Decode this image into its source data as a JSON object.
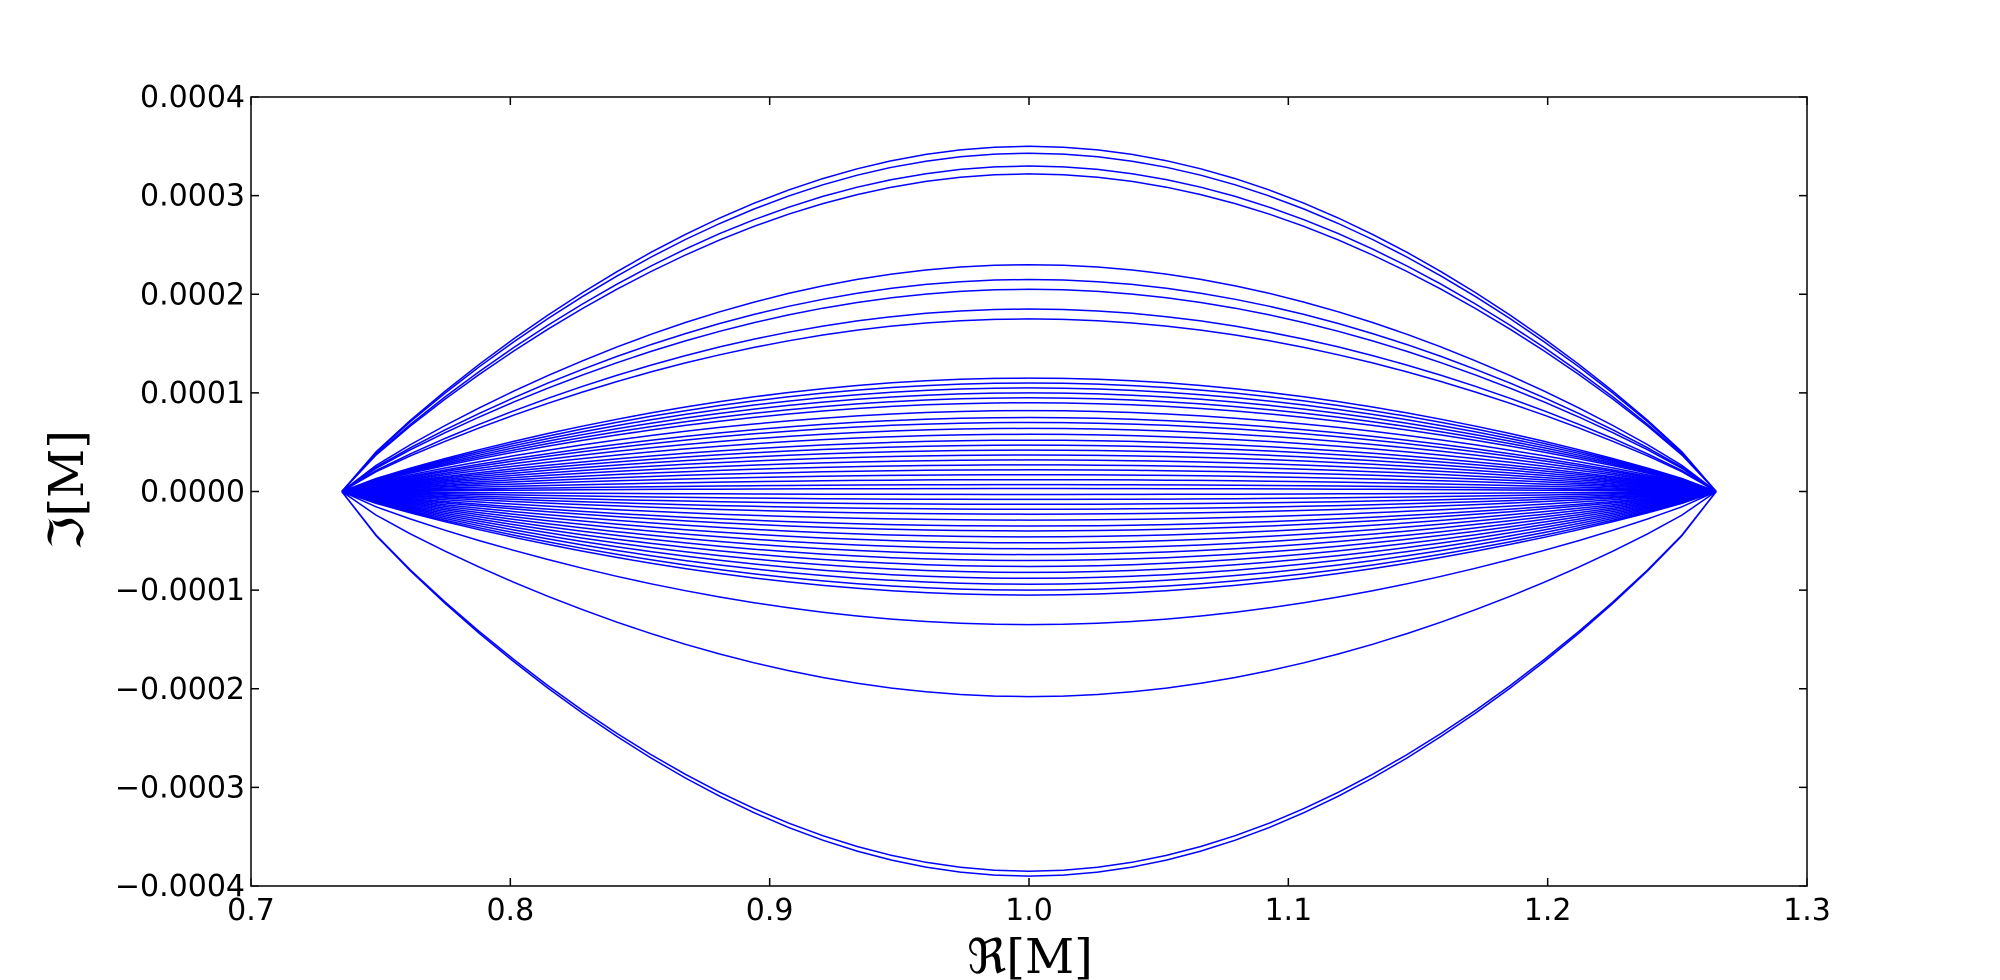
{
  "chart_data": {
    "type": "line",
    "title": "",
    "xlabel": "ℜ[M]",
    "ylabel": "ℑ[M]",
    "xlim": [
      0.7,
      1.3
    ],
    "ylim": [
      -0.0004,
      0.0004
    ],
    "xticks": [
      "0.7",
      "0.8",
      "0.9",
      "1.0",
      "1.1",
      "1.2",
      "1.3"
    ],
    "yticks": [
      "−0.0004",
      "−0.0003",
      "−0.0002",
      "−0.0001",
      "0.0000",
      "0.0001",
      "0.0002",
      "0.0003",
      "0.0004"
    ],
    "grid": false,
    "legend": "none",
    "line_color": "#0000ff",
    "curve_shape": "closed loops through (0.735, 0) and (1.265, 0), peaking at x≈1.0",
    "series": [
      {
        "peak_imag": 0.00035
      },
      {
        "peak_imag": 0.000343
      },
      {
        "peak_imag": 0.00033
      },
      {
        "peak_imag": 0.000322
      },
      {
        "peak_imag": 0.00023
      },
      {
        "peak_imag": 0.000215
      },
      {
        "peak_imag": 0.000205
      },
      {
        "peak_imag": 0.000185
      },
      {
        "peak_imag": 0.000175
      },
      {
        "peak_imag": 0.000115
      },
      {
        "peak_imag": 0.00011
      },
      {
        "peak_imag": 0.000105
      },
      {
        "peak_imag": 0.0001
      },
      {
        "peak_imag": 9.5e-05
      },
      {
        "peak_imag": 9e-05
      },
      {
        "peak_imag": 8.2e-05
      },
      {
        "peak_imag": 7.5e-05
      },
      {
        "peak_imag": 7e-05
      },
      {
        "peak_imag": 6.4e-05
      },
      {
        "peak_imag": 5.8e-05
      },
      {
        "peak_imag": 5.2e-05
      },
      {
        "peak_imag": 4.7e-05
      },
      {
        "peak_imag": 4.2e-05
      },
      {
        "peak_imag": 3.7e-05
      },
      {
        "peak_imag": 3.2e-05
      },
      {
        "peak_imag": 2.7e-05
      },
      {
        "peak_imag": 2.2e-05
      },
      {
        "peak_imag": 1.7e-05
      },
      {
        "peak_imag": 1.2e-05
      },
      {
        "peak_imag": 7e-06
      },
      {
        "peak_imag": 3e-06
      },
      {
        "peak_imag": -3e-06
      },
      {
        "peak_imag": -8e-06
      },
      {
        "peak_imag": -1.3e-05
      },
      {
        "peak_imag": -1.8e-05
      },
      {
        "peak_imag": -2.3e-05
      },
      {
        "peak_imag": -2.9e-05
      },
      {
        "peak_imag": -3.5e-05
      },
      {
        "peak_imag": -4e-05
      },
      {
        "peak_imag": -4.6e-05
      },
      {
        "peak_imag": -5.2e-05
      },
      {
        "peak_imag": -5.8e-05
      },
      {
        "peak_imag": -6.4e-05
      },
      {
        "peak_imag": -7e-05
      },
      {
        "peak_imag": -7.6e-05
      },
      {
        "peak_imag": -8.2e-05
      },
      {
        "peak_imag": -8.8e-05
      },
      {
        "peak_imag": -9.4e-05
      },
      {
        "peak_imag": -0.0001
      },
      {
        "peak_imag": -0.000105
      },
      {
        "peak_imag": -0.000135
      },
      {
        "peak_imag": -0.000208
      },
      {
        "peak_imag": -0.000385
      },
      {
        "peak_imag": -0.00039
      }
    ]
  }
}
